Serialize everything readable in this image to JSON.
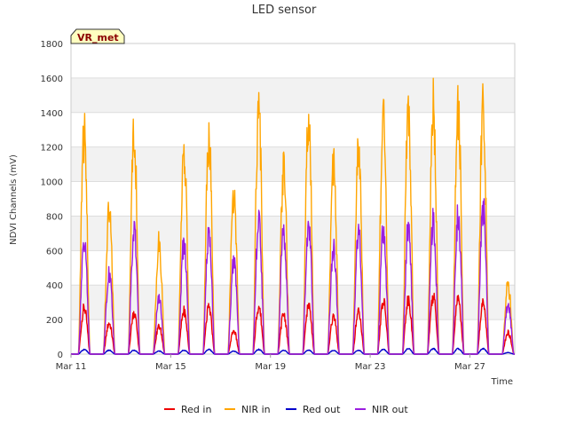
{
  "chart_data": {
    "type": "line",
    "title": "LED sensor",
    "xlabel": "Time",
    "ylabel": "NDVI Channels (mV)",
    "ylim": [
      0,
      1800
    ],
    "yticks": [
      0,
      200,
      400,
      600,
      800,
      1000,
      1200,
      1400,
      1600,
      1800
    ],
    "xticks": [
      "Mar 11",
      "Mar 15",
      "Mar 19",
      "Mar 23",
      "Mar 27"
    ],
    "x_start_day": 11,
    "x_end_day": 28.8,
    "grid": true,
    "legend_position": "bottom",
    "badge": "VR_met",
    "days": [
      "Mar 11",
      "Mar 12",
      "Mar 13",
      "Mar 14",
      "Mar 15",
      "Mar 16",
      "Mar 17",
      "Mar 18",
      "Mar 19",
      "Mar 20",
      "Mar 21",
      "Mar 22",
      "Mar 23",
      "Mar 24",
      "Mar 25",
      "Mar 26",
      "Mar 27",
      "Mar 28"
    ],
    "series": [
      {
        "name": "Red in",
        "color": "#ee0000",
        "daily_peak": [
          300,
          200,
          270,
          180,
          280,
          300,
          150,
          310,
          260,
          310,
          240,
          270,
          340,
          360,
          380,
          360,
          330,
          140
        ]
      },
      {
        "name": "NIR in",
        "color": "#ffa500",
        "daily_peak": [
          1420,
          930,
          1430,
          720,
          1350,
          1430,
          1020,
          1550,
          1210,
          1540,
          1220,
          1330,
          1550,
          1580,
          1600,
          1580,
          1590,
          450
        ]
      },
      {
        "name": "Red out",
        "color": "#0000cc",
        "daily_peak": [
          30,
          25,
          25,
          20,
          25,
          30,
          20,
          30,
          25,
          25,
          25,
          25,
          30,
          35,
          35,
          35,
          35,
          10
        ]
      },
      {
        "name": "NIR out",
        "color": "#9a1ee0",
        "daily_peak": [
          730,
          530,
          800,
          350,
          720,
          790,
          600,
          850,
          800,
          860,
          700,
          800,
          830,
          830,
          860,
          900,
          960,
          320
        ]
      }
    ]
  }
}
